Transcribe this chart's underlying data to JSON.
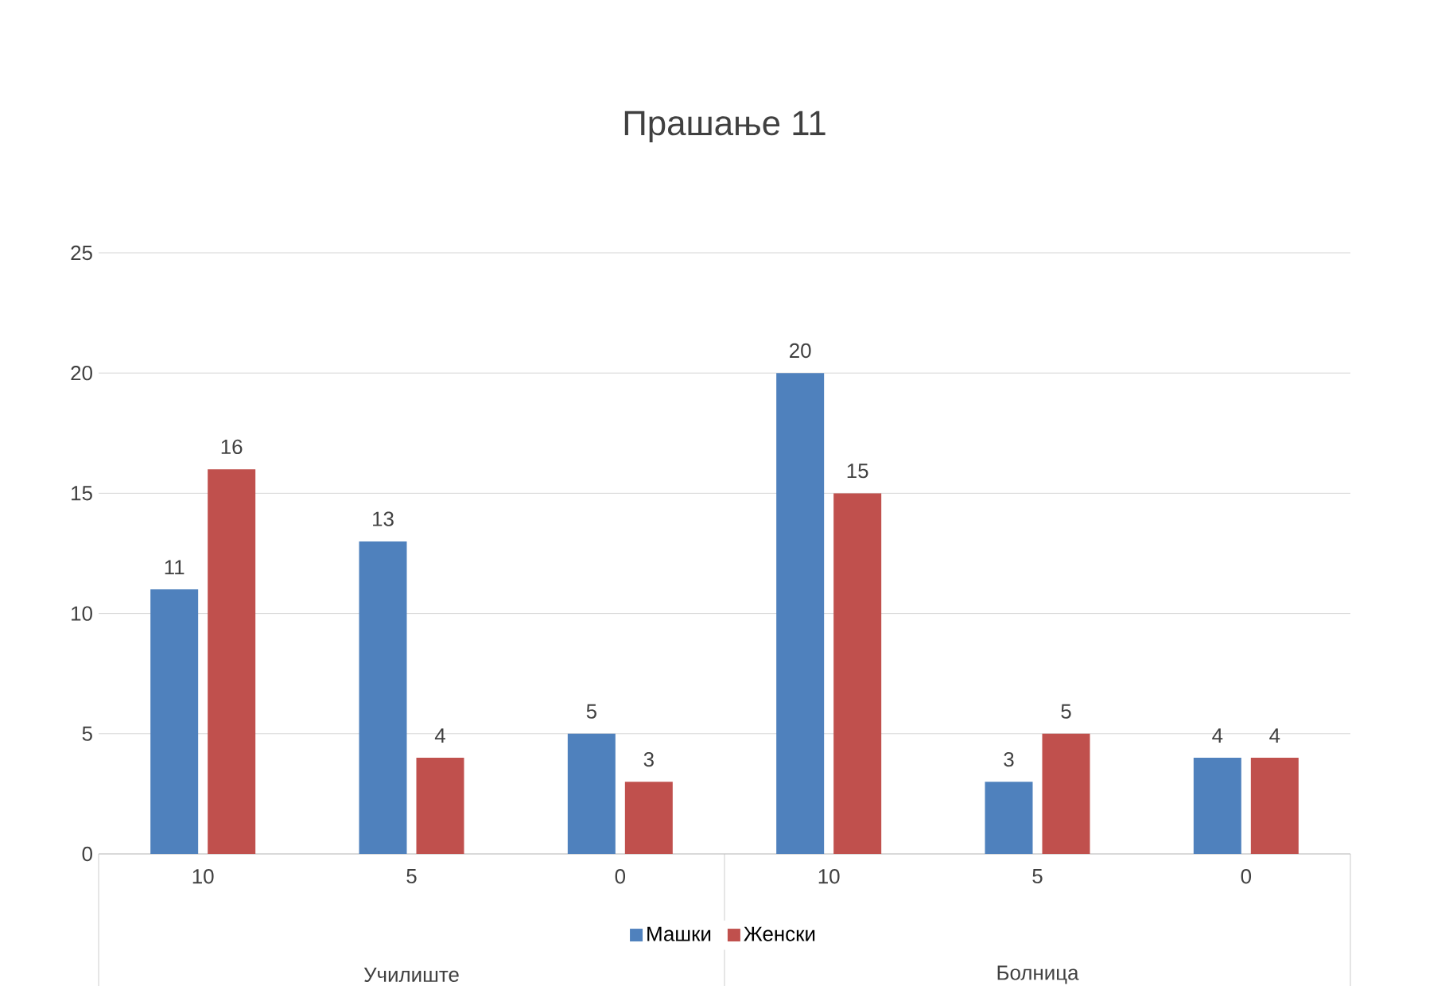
{
  "chart_data": {
    "type": "bar",
    "title": "Прашање 11",
    "categories": [
      "10",
      "5",
      "0",
      "10",
      "5",
      "0"
    ],
    "series": [
      {
        "name": "Машки",
        "color": "#4f81bd",
        "values": [
          11,
          13,
          5,
          20,
          3,
          4
        ]
      },
      {
        "name": "Женски",
        "color": "#c0504d",
        "values": [
          16,
          4,
          3,
          15,
          5,
          4
        ]
      }
    ],
    "annotations": [
      "Училиште",
      "Болница"
    ],
    "ylim": [
      0,
      25
    ],
    "yticks": [
      0,
      5,
      10,
      15,
      20,
      25
    ],
    "grid": "y",
    "legend": "bottom",
    "data_labels": true
  }
}
